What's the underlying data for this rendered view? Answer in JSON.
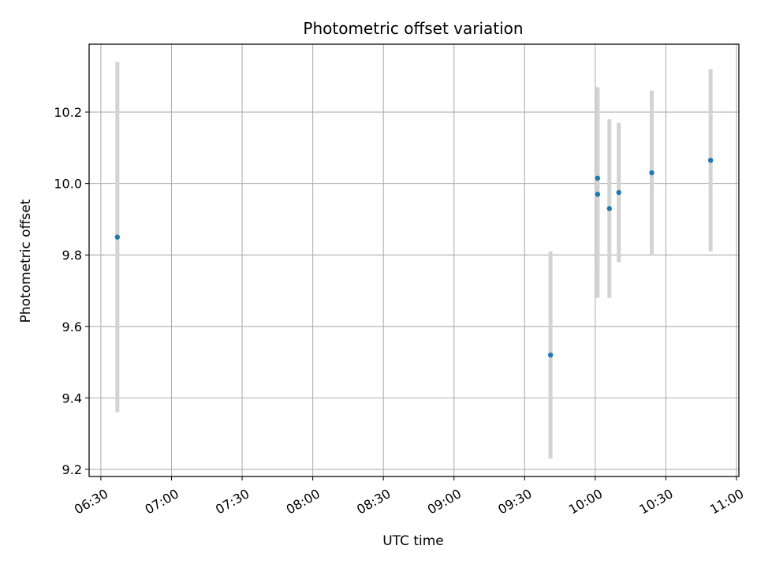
{
  "chart_data": {
    "type": "scatter",
    "title": "Photometric offset variation",
    "xlabel": "UTC time",
    "ylabel": "Photometric offset",
    "x_ticks": [
      "06:30",
      "07:00",
      "07:30",
      "08:00",
      "08:30",
      "09:00",
      "09:30",
      "10:00",
      "10:30",
      "11:00"
    ],
    "y_ticks": [
      "9.2",
      "9.4",
      "9.6",
      "9.8",
      "10.0",
      "10.2"
    ],
    "xlim": [
      "06:25",
      "11:01"
    ],
    "ylim": [
      9.18,
      10.39
    ],
    "grid": true,
    "colors": {
      "point": "#1f77b4",
      "errorbar": "#d3d3d3",
      "grid": "#b0b0b0"
    },
    "points": [
      {
        "x": "06:37",
        "y": 9.85,
        "err_low": 9.36,
        "err_high": 10.34
      },
      {
        "x": "09:41",
        "y": 9.52,
        "err_low": 9.23,
        "err_high": 9.81
      },
      {
        "x": "10:01",
        "y": 10.015,
        "err_low": 9.77,
        "err_high": 10.27
      },
      {
        "x": "10:01",
        "y": 9.97,
        "err_low": 9.68,
        "err_high": 10.25
      },
      {
        "x": "10:06",
        "y": 9.93,
        "err_low": 9.68,
        "err_high": 10.18
      },
      {
        "x": "10:10",
        "y": 9.975,
        "err_low": 9.78,
        "err_high": 10.17
      },
      {
        "x": "10:24",
        "y": 10.03,
        "err_low": 9.8,
        "err_high": 10.26
      },
      {
        "x": "10:49",
        "y": 10.065,
        "err_low": 9.81,
        "err_high": 10.32
      }
    ]
  }
}
